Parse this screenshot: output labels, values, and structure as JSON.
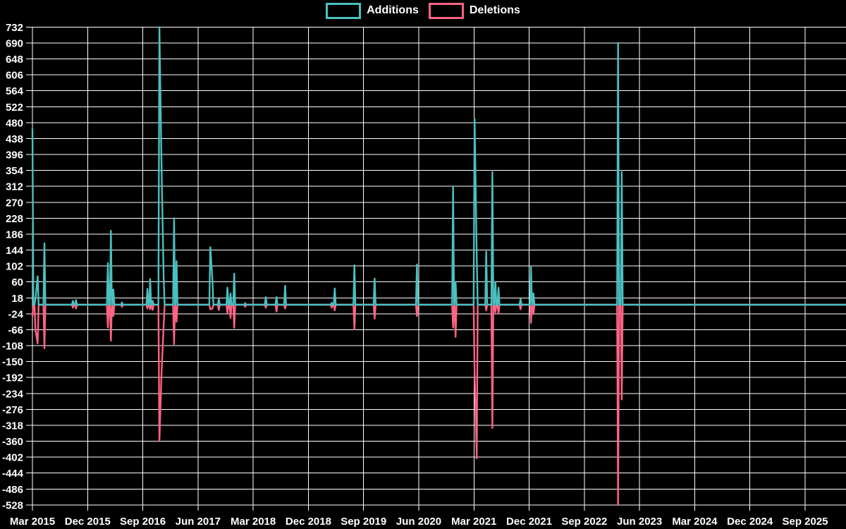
{
  "legend": {
    "items": [
      {
        "id": "additions",
        "label": "Additions",
        "color": "#4bc0c0"
      },
      {
        "id": "deletions",
        "label": "Deletions",
        "color": "#ff6384"
      }
    ]
  },
  "colors": {
    "background": "#000000",
    "grid": "#ffffff",
    "axis": "#ffffff",
    "text": "#ffffff",
    "additions": "#4bc0c0",
    "deletions": "#ff6384"
  },
  "chart_data": {
    "type": "line",
    "title": "",
    "xlabel": "",
    "ylabel": "",
    "grid": true,
    "legend_position": "top",
    "series": [
      {
        "name": "Additions",
        "color": "#4bc0c0"
      },
      {
        "name": "Deletions",
        "color": "#ff6384"
      }
    ],
    "x_axis": {
      "unit": "date",
      "start": "Mar 2015",
      "end": "Sep 2025",
      "tick_interval_months": 9,
      "range_months": [
        0,
        126
      ],
      "tick_labels": [
        "Mar 2015",
        "Dec 2015",
        "Sep 2016",
        "Jun 2017",
        "Mar 2018",
        "Dec 2018",
        "Sep 2019",
        "Jun 2020",
        "Mar 2021",
        "Dec 2021",
        "Sep 2022",
        "Jun 2023",
        "Mar 2024",
        "Dec 2024",
        "Sep 2025"
      ]
    },
    "y_axis": {
      "min": -528,
      "max": 732,
      "tick_step": 42,
      "tick_labels": [
        732,
        690,
        648,
        606,
        564,
        522,
        480,
        438,
        396,
        354,
        312,
        270,
        228,
        186,
        144,
        102,
        60,
        18,
        -24,
        -66,
        -108,
        -150,
        -192,
        -234,
        -276,
        -318,
        -360,
        -402,
        -444,
        -486,
        -528
      ]
    },
    "points_schema": [
      "months_since_2015_03",
      "additions",
      "deletions"
    ],
    "baseline_value": 0,
    "points": [
      [
        0.0,
        463,
        -30
      ],
      [
        0.5,
        15,
        -67
      ],
      [
        0.85,
        75,
        -102
      ],
      [
        1.95,
        162,
        -115
      ],
      [
        6.6,
        10,
        -8
      ],
      [
        7.1,
        12,
        -10
      ],
      [
        12.3,
        110,
        -60
      ],
      [
        12.8,
        195,
        -95
      ],
      [
        13.2,
        40,
        -30
      ],
      [
        14.6,
        6,
        -6
      ],
      [
        18.75,
        42,
        -10
      ],
      [
        19.2,
        68,
        -12
      ],
      [
        19.6,
        10,
        -14
      ],
      [
        20.7,
        732,
        -360
      ],
      [
        21.05,
        370,
        -182
      ],
      [
        21.4,
        75,
        -56
      ],
      [
        23.1,
        228,
        -104
      ],
      [
        23.5,
        115,
        -45
      ],
      [
        29.0,
        152,
        -12
      ],
      [
        29.35,
        65,
        -10
      ],
      [
        30.4,
        15,
        -14
      ],
      [
        31.8,
        45,
        -22
      ],
      [
        32.3,
        30,
        -35
      ],
      [
        32.9,
        82,
        -61
      ],
      [
        34.7,
        4,
        -6
      ],
      [
        38.05,
        20,
        -8
      ],
      [
        39.8,
        20,
        -18
      ],
      [
        41.2,
        50,
        -10
      ],
      [
        48.8,
        5,
        -8
      ],
      [
        49.3,
        43,
        -15
      ],
      [
        52.5,
        104,
        -65
      ],
      [
        55.8,
        69,
        -37
      ],
      [
        62.7,
        106,
        -30
      ],
      [
        68.6,
        312,
        -60
      ],
      [
        69.0,
        60,
        -85
      ],
      [
        72.1,
        490,
        -177
      ],
      [
        72.45,
        130,
        -405
      ],
      [
        74.0,
        140,
        -15
      ],
      [
        75.0,
        350,
        -325
      ],
      [
        75.5,
        60,
        -20
      ],
      [
        76.0,
        45,
        -24
      ],
      [
        79.6,
        15,
        -12
      ],
      [
        81.3,
        100,
        -48
      ],
      [
        81.7,
        30,
        -25
      ],
      [
        95.5,
        690,
        -528
      ],
      [
        96.1,
        350,
        -250
      ]
    ]
  }
}
